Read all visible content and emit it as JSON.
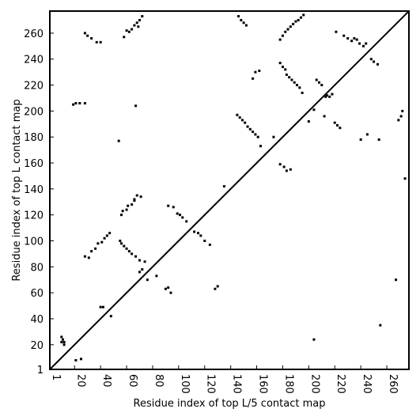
{
  "chart_data": {
    "type": "scatter",
    "title": "",
    "xlabel": "Residue index of top L/5 contact map",
    "ylabel": "Residue index of top L contact map",
    "xlim": [
      1,
      277
    ],
    "ylim": [
      1,
      277
    ],
    "xticks": [
      1,
      20,
      40,
      60,
      80,
      100,
      120,
      140,
      160,
      180,
      200,
      220,
      240,
      260
    ],
    "yticks": [
      1,
      20,
      40,
      60,
      80,
      100,
      120,
      140,
      160,
      180,
      200,
      220,
      240,
      260
    ],
    "grid": false,
    "diagonal": true,
    "marker_color": "#000000",
    "series": [
      {
        "points": [
          [
            10,
            22
          ],
          [
            10,
            26
          ],
          [
            11,
            24
          ],
          [
            12,
            22
          ],
          [
            12,
            20
          ],
          [
            21,
            8
          ],
          [
            25,
            9
          ],
          [
            19,
            205
          ],
          [
            21,
            206
          ],
          [
            24,
            206
          ],
          [
            28,
            206
          ],
          [
            28,
            88
          ],
          [
            31,
            87
          ],
          [
            33,
            92
          ],
          [
            36,
            94
          ],
          [
            38,
            98
          ],
          [
            41,
            99
          ],
          [
            43,
            102
          ],
          [
            45,
            104
          ],
          [
            47,
            106
          ],
          [
            40,
            49
          ],
          [
            42,
            49
          ],
          [
            48,
            42
          ],
          [
            55,
            100
          ],
          [
            56,
            98
          ],
          [
            58,
            96
          ],
          [
            60,
            94
          ],
          [
            62,
            92
          ],
          [
            64,
            90
          ],
          [
            67,
            88
          ],
          [
            70,
            85
          ],
          [
            74,
            84
          ],
          [
            72,
            78
          ],
          [
            70,
            76
          ],
          [
            76,
            70
          ],
          [
            83,
            73
          ],
          [
            56,
            120
          ],
          [
            57,
            123
          ],
          [
            60,
            124
          ],
          [
            61,
            127
          ],
          [
            64,
            128
          ],
          [
            66,
            132
          ],
          [
            68,
            135
          ],
          [
            71,
            134
          ],
          [
            66,
            131
          ],
          [
            90,
            63
          ],
          [
            92,
            64
          ],
          [
            94,
            60
          ],
          [
            92,
            127
          ],
          [
            96,
            126
          ],
          [
            99,
            121
          ],
          [
            101,
            120
          ],
          [
            103,
            118
          ],
          [
            106,
            115
          ],
          [
            112,
            107
          ],
          [
            115,
            106
          ],
          [
            117,
            104
          ],
          [
            120,
            100
          ],
          [
            124,
            97
          ],
          [
            128,
            63
          ],
          [
            130,
            65
          ],
          [
            28,
            260
          ],
          [
            30,
            258
          ],
          [
            33,
            256
          ],
          [
            37,
            253
          ],
          [
            40,
            253
          ],
          [
            58,
            257
          ],
          [
            60,
            262
          ],
          [
            62,
            261
          ],
          [
            64,
            263
          ],
          [
            66,
            266
          ],
          [
            68,
            268
          ],
          [
            70,
            270
          ],
          [
            72,
            273
          ],
          [
            69,
            265
          ],
          [
            67,
            204
          ],
          [
            54,
            177
          ],
          [
            135,
            142
          ],
          [
            145,
            197
          ],
          [
            147,
            195
          ],
          [
            149,
            193
          ],
          [
            151,
            191
          ],
          [
            153,
            188
          ],
          [
            155,
            186
          ],
          [
            157,
            184
          ],
          [
            159,
            182
          ],
          [
            161,
            180
          ],
          [
            163,
            173
          ],
          [
            146,
            273
          ],
          [
            148,
            270
          ],
          [
            150,
            268
          ],
          [
            152,
            266
          ],
          [
            157,
            225
          ],
          [
            159,
            230
          ],
          [
            162,
            231
          ],
          [
            173,
            180
          ],
          [
            178,
            237
          ],
          [
            180,
            234
          ],
          [
            182,
            232
          ],
          [
            183,
            228
          ],
          [
            185,
            226
          ],
          [
            187,
            224
          ],
          [
            189,
            222
          ],
          [
            191,
            220
          ],
          [
            193,
            218
          ],
          [
            195,
            214
          ],
          [
            178,
            255
          ],
          [
            180,
            258
          ],
          [
            182,
            261
          ],
          [
            184,
            263
          ],
          [
            186,
            265
          ],
          [
            188,
            267
          ],
          [
            190,
            269
          ],
          [
            192,
            270
          ],
          [
            194,
            272
          ],
          [
            196,
            274
          ],
          [
            178,
            159
          ],
          [
            181,
            157
          ],
          [
            183,
            154
          ],
          [
            186,
            155
          ],
          [
            200,
            192
          ],
          [
            204,
            201
          ],
          [
            206,
            224
          ],
          [
            208,
            222
          ],
          [
            210,
            220
          ],
          [
            212,
            196
          ],
          [
            214,
            212
          ],
          [
            216,
            211
          ],
          [
            218,
            213
          ],
          [
            220,
            191
          ],
          [
            222,
            189
          ],
          [
            224,
            187
          ],
          [
            227,
            258
          ],
          [
            230,
            256
          ],
          [
            233,
            254
          ],
          [
            235,
            256
          ],
          [
            237,
            255
          ],
          [
            239,
            252
          ],
          [
            242,
            250
          ],
          [
            244,
            252
          ],
          [
            248,
            240
          ],
          [
            250,
            238
          ],
          [
            253,
            236
          ],
          [
            254,
            178
          ],
          [
            255,
            35
          ],
          [
            240,
            178
          ],
          [
            245,
            182
          ],
          [
            267,
            70
          ],
          [
            269,
            193
          ],
          [
            271,
            196
          ],
          [
            272,
            200
          ],
          [
            274,
            148
          ],
          [
            204,
            24
          ],
          [
            221,
            261
          ],
          [
            213,
            211
          ]
        ]
      }
    ]
  }
}
